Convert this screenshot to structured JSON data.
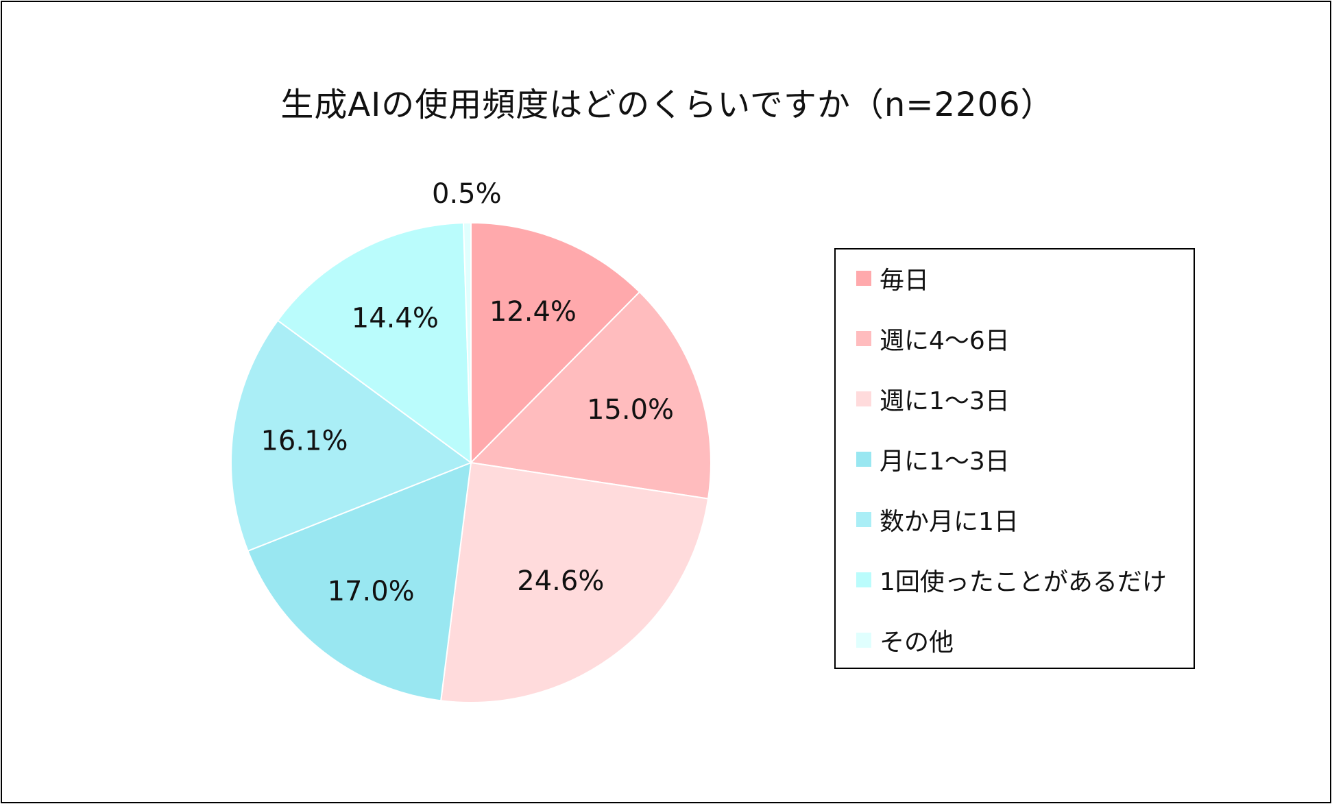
{
  "chart_data": {
    "type": "pie",
    "title": "生成AIの使用頻度はどのくらいですか（n=2206）",
    "categories": [
      "毎日",
      "週に4～6日",
      "週に1～3日",
      "月に1～3日",
      "数か月に1日",
      "1回使ったことがあるだけ",
      "その他"
    ],
    "values": [
      12.4,
      15.0,
      24.6,
      17.0,
      16.1,
      14.4,
      0.5
    ],
    "labels": [
      "12.4%",
      "15.0%",
      "24.6%",
      "17.0%",
      "16.1%",
      "14.4%",
      "0.5%"
    ],
    "colors": [
      "#FFA9AC",
      "#FFBCBE",
      "#FFDBDC",
      "#99E7F1",
      "#AAEEF6",
      "#BAFCFC",
      "#E0FFFE"
    ],
    "legend": "right",
    "start": "12 o'clock",
    "direction": "clockwise"
  }
}
